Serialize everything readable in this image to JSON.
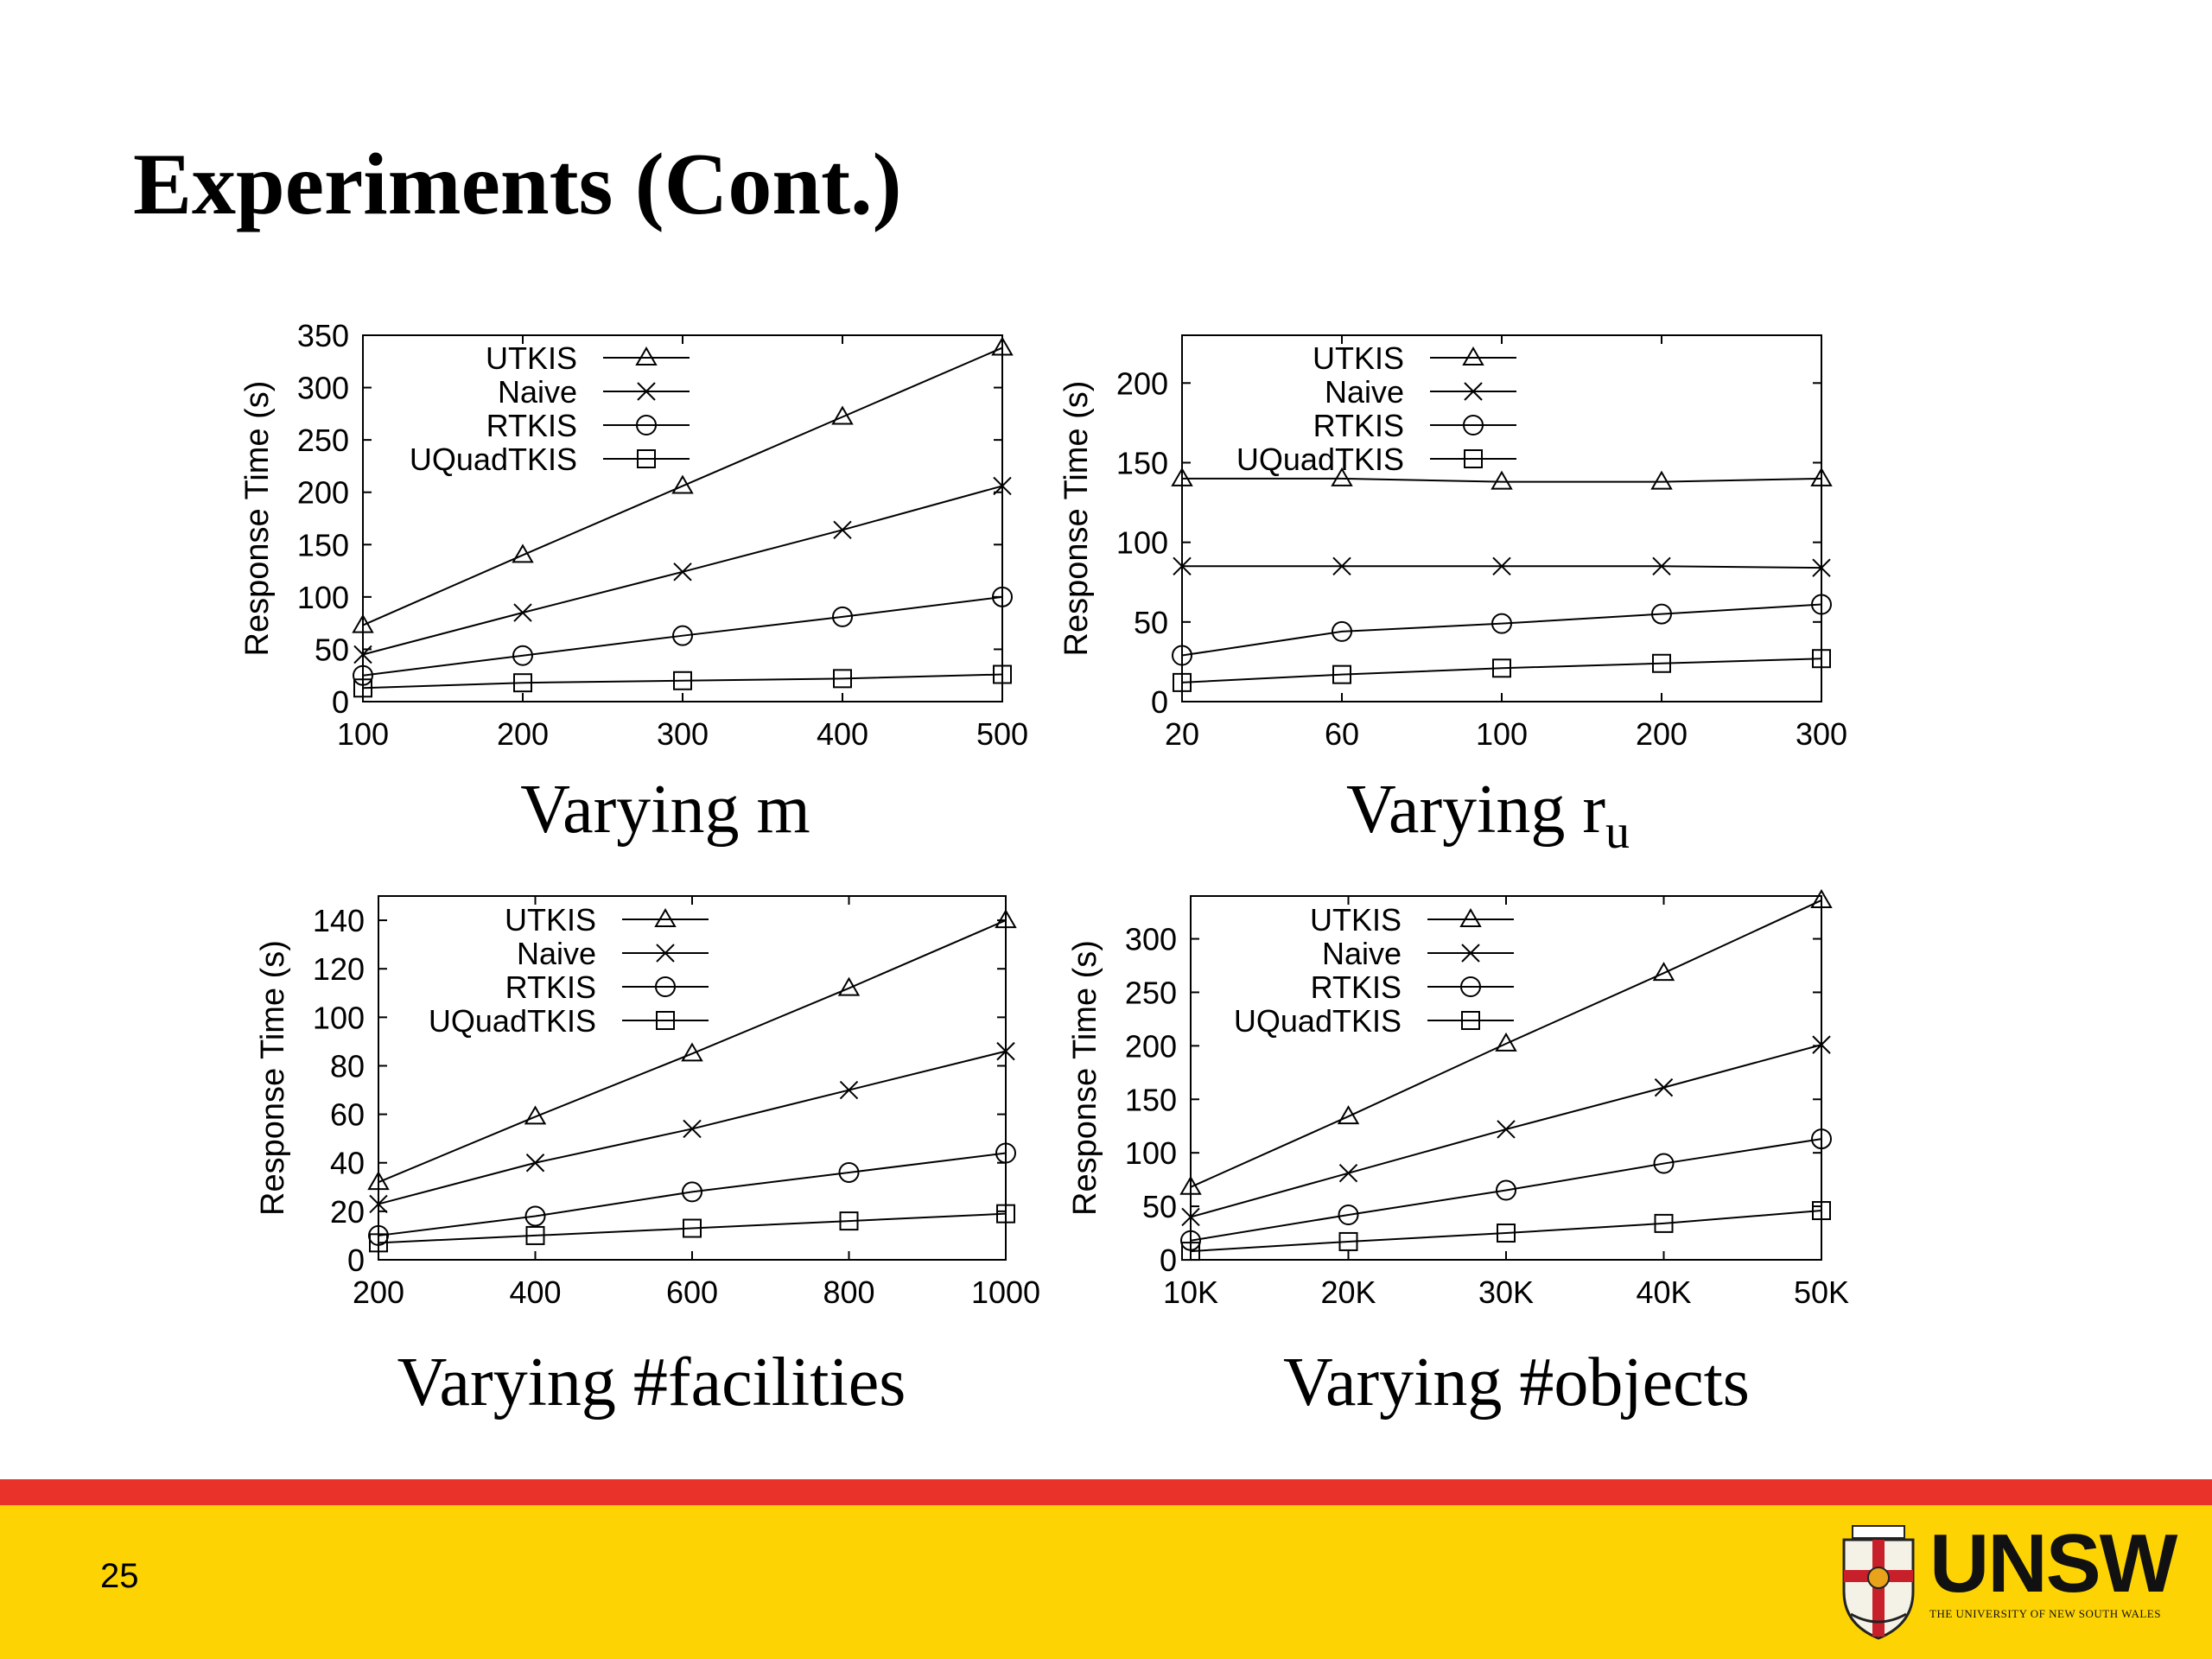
{
  "slide": {
    "title": "Experiments (Cont.)",
    "page_number": "25"
  },
  "colors": {
    "footer_red": "#e8322a",
    "footer_yellow": "#fdd303",
    "series_line": "#000000"
  },
  "captions": {
    "m": "Varying m",
    "ru_main": "Varying r",
    "ru_sub": "u",
    "facilities": "Varying #facilities",
    "objects": "Varying #objects"
  },
  "logo": {
    "word": "UNSW",
    "subtitle": "THE UNIVERSITY OF NEW SOUTH WALES"
  },
  "chart_data": [
    {
      "id": "m",
      "type": "line",
      "ylabel": "Response Time (s)",
      "categories": [
        "100",
        "200",
        "300",
        "400",
        "500"
      ],
      "yticks": [
        0,
        50,
        100,
        150,
        200,
        250,
        300,
        350
      ],
      "ylim": [
        0,
        350
      ],
      "grid": false,
      "legend_position": "top-left",
      "series": [
        {
          "name": "UTKIS",
          "marker": "triangle",
          "values": [
            73,
            140,
            206,
            272,
            338
          ]
        },
        {
          "name": "Naive",
          "marker": "x",
          "values": [
            45,
            85,
            124,
            164,
            206
          ]
        },
        {
          "name": "RTKIS",
          "marker": "circle",
          "values": [
            25,
            44,
            63,
            81,
            100
          ]
        },
        {
          "name": "UQuadTKIS",
          "marker": "square",
          "values": [
            13,
            18,
            20,
            22,
            26
          ]
        }
      ]
    },
    {
      "id": "ru",
      "type": "line",
      "ylabel": "Response Time (s)",
      "categories": [
        "20",
        "60",
        "100",
        "200",
        "300"
      ],
      "yticks": [
        0,
        50,
        100,
        150,
        200
      ],
      "ylim": [
        0,
        230
      ],
      "grid": false,
      "legend_position": "top-left",
      "series": [
        {
          "name": "UTKIS",
          "marker": "triangle",
          "values": [
            140,
            140,
            138,
            138,
            140
          ]
        },
        {
          "name": "Naive",
          "marker": "x",
          "values": [
            85,
            85,
            85,
            85,
            84
          ]
        },
        {
          "name": "RTKIS",
          "marker": "circle",
          "values": [
            29,
            44,
            49,
            55,
            61
          ]
        },
        {
          "name": "UQuadTKIS",
          "marker": "square",
          "values": [
            12,
            17,
            21,
            24,
            27
          ]
        }
      ]
    },
    {
      "id": "facilities",
      "type": "line",
      "ylabel": "Response Time (s)",
      "categories": [
        "200",
        "400",
        "600",
        "800",
        "1000"
      ],
      "yticks": [
        0,
        20,
        40,
        60,
        80,
        100,
        120,
        140
      ],
      "ylim": [
        0,
        150
      ],
      "grid": false,
      "legend_position": "top-left",
      "series": [
        {
          "name": "UTKIS",
          "marker": "triangle",
          "values": [
            32,
            59,
            85,
            112,
            140
          ]
        },
        {
          "name": "Naive",
          "marker": "x",
          "values": [
            23,
            40,
            54,
            70,
            86
          ]
        },
        {
          "name": "RTKIS",
          "marker": "circle",
          "values": [
            10,
            18,
            28,
            36,
            44
          ]
        },
        {
          "name": "UQuadTKIS",
          "marker": "square",
          "values": [
            7,
            10,
            13,
            16,
            19
          ]
        }
      ]
    },
    {
      "id": "objects",
      "type": "line",
      "ylabel": "Response Time (s)",
      "categories": [
        "10K",
        "20K",
        "30K",
        "40K",
        "50K"
      ],
      "yticks": [
        0,
        50,
        100,
        150,
        200,
        250,
        300
      ],
      "ylim": [
        0,
        340
      ],
      "grid": false,
      "legend_position": "top-left",
      "series": [
        {
          "name": "UTKIS",
          "marker": "triangle",
          "values": [
            68,
            134,
            202,
            268,
            336
          ]
        },
        {
          "name": "Naive",
          "marker": "x",
          "values": [
            40,
            81,
            122,
            161,
            201
          ]
        },
        {
          "name": "RTKIS",
          "marker": "circle",
          "values": [
            18,
            42,
            65,
            90,
            113
          ]
        },
        {
          "name": "UQuadTKIS",
          "marker": "square",
          "values": [
            8,
            17,
            25,
            34,
            46
          ]
        }
      ]
    }
  ]
}
